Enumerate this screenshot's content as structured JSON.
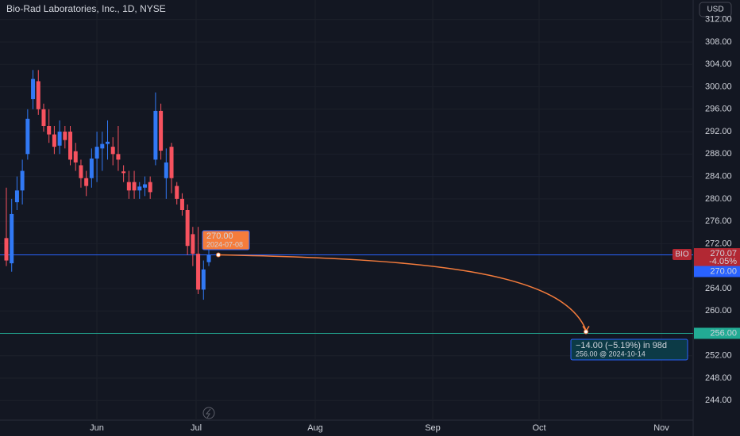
{
  "chart_data": {
    "type": "candlestick",
    "title": "Bio-Rad Laboratories, Inc., 1D, NYSE",
    "currency": "USD",
    "months": [
      "Jun",
      "Jul",
      "Aug",
      "Sep",
      "Oct",
      "Nov"
    ],
    "up_color": "#3179f5",
    "down_color": "#f7525f",
    "open": [
      273,
      268.5,
      279.4,
      281.5,
      288,
      297.8,
      301,
      296,
      293,
      291.5,
      289.5,
      292,
      292,
      288.5,
      286,
      283.7,
      283.7,
      287.2,
      289,
      289.8,
      289.3,
      288,
      284.9,
      283,
      283,
      281.5,
      282,
      283,
      287,
      295.7,
      283.7,
      289.3,
      282.3,
      280,
      278,
      273.7,
      270.2,
      263.8,
      268.7
    ],
    "high": [
      282,
      280,
      284,
      287,
      296,
      303,
      303,
      297,
      296,
      293,
      294,
      293,
      293,
      290,
      287,
      285,
      289,
      292,
      292,
      294,
      291,
      293,
      286,
      285,
      285,
      283,
      284,
      284,
      299,
      297,
      289,
      290,
      283,
      281,
      279,
      275,
      275,
      269,
      271
    ],
    "low": [
      268,
      267,
      278,
      279,
      287,
      296,
      295,
      292,
      290,
      288,
      288,
      289,
      286,
      285,
      282,
      280.5,
      282,
      283,
      285,
      287,
      286,
      285,
      283,
      280,
      280,
      280,
      280.5,
      280,
      286,
      287,
      280,
      281,
      279,
      277,
      270,
      268,
      263,
      262,
      268
    ],
    "close": [
      269,
      277.3,
      281.5,
      285,
      294.3,
      301.4,
      296,
      293,
      291.5,
      289.3,
      292,
      290.5,
      287,
      286.5,
      283.7,
      282.3,
      287.2,
      289.3,
      289.8,
      290.2,
      288,
      287,
      284.6,
      281.5,
      281.5,
      282.2,
      282.6,
      281.2,
      295.7,
      288.6,
      286.5,
      283.7,
      280,
      278,
      271.6,
      270.2,
      263.8,
      267.4,
      270
    ],
    "ylim": [
      240.5,
      315.5
    ],
    "yticks": [
      {
        "value": 312,
        "label": "312.00"
      },
      {
        "value": 308,
        "label": "308.00"
      },
      {
        "value": 304,
        "label": "304.00"
      },
      {
        "value": 300,
        "label": "300.00"
      },
      {
        "value": 296,
        "label": "296.00"
      },
      {
        "value": 292,
        "label": "292.00"
      },
      {
        "value": 288,
        "label": "288.00"
      },
      {
        "value": 284,
        "label": "284.00"
      },
      {
        "value": 280,
        "label": "280.00"
      },
      {
        "value": 276,
        "label": "276.00"
      },
      {
        "value": 272,
        "label": "272.00"
      },
      {
        "value": 264,
        "label": "264.00"
      },
      {
        "value": 260,
        "label": "260.00"
      },
      {
        "value": 252,
        "label": "252.00"
      },
      {
        "value": 248,
        "label": "248.00"
      },
      {
        "value": 244,
        "label": "244.00"
      }
    ],
    "grid": true,
    "last_price": {
      "symbol": "BIO",
      "value": 270.07,
      "label": "270.07",
      "change": "-4.05%",
      "color": "#b22833"
    },
    "horizontal_lines": [
      {
        "value": 270,
        "label": "270.00",
        "color": "#2962ff"
      },
      {
        "value": 256,
        "label": "256.00",
        "color": "#22ab94"
      }
    ],
    "forecast": {
      "start_label": "270.00",
      "start_date": "2024-07-08",
      "change_text": "−14.00 (−5.19%) in 98d",
      "end_text": "256.00 @ 2024-10-14",
      "color": "#f57c3c"
    }
  }
}
